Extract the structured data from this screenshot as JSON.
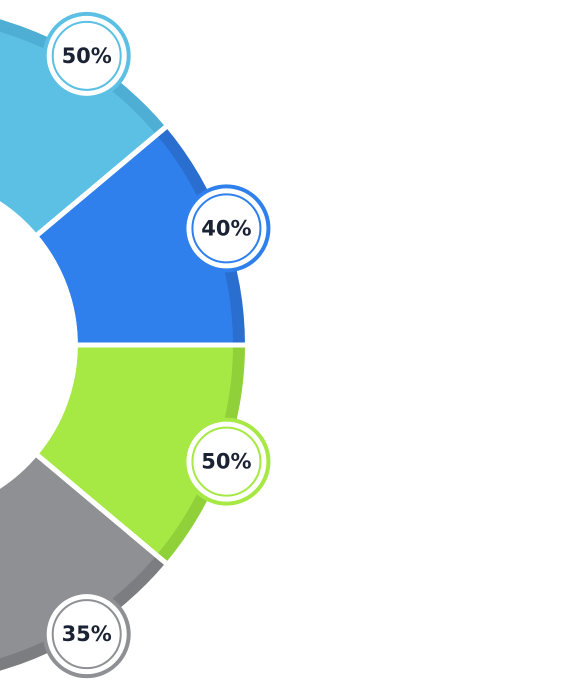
{
  "segments": [
    {
      "label": "50%"
    },
    {
      "label": "40%"
    },
    {
      "label": "50%"
    },
    {
      "label": "35%"
    }
  ]
}
